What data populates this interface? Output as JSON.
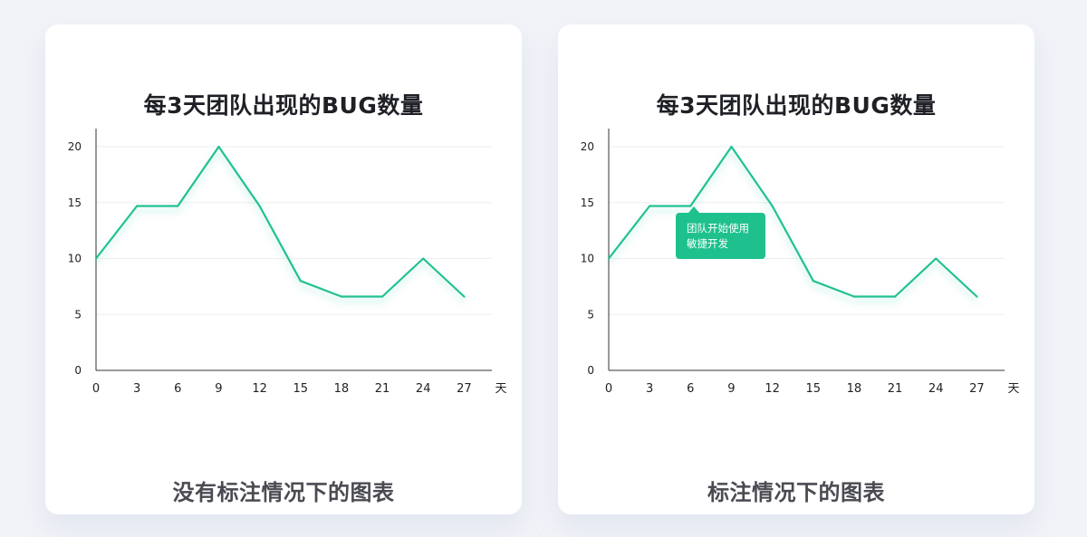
{
  "panels": [
    {
      "title": "每3天团队出现的BUG数量",
      "caption": "没有标注情况下的图表"
    },
    {
      "title": "每3天团队出现的BUG数量",
      "caption": "标注情况下的图表",
      "annotation": {
        "line1": "团队开始使用",
        "line2": "敏捷开发"
      }
    }
  ],
  "colors": {
    "line": "#22c192",
    "annotation_bg": "#1ec18d",
    "axis": "#333333",
    "grid": "#eeeeee"
  },
  "chart_data": [
    {
      "type": "line",
      "title": "每3天团队出现的BUG数量",
      "x": [
        0,
        3,
        6,
        9,
        12,
        15,
        18,
        21,
        24,
        27
      ],
      "y": [
        10,
        14.7,
        14.7,
        20,
        14.7,
        8,
        6.6,
        6.6,
        10,
        6.6
      ],
      "xticks": [
        "0",
        "3",
        "6",
        "9",
        "12",
        "15",
        "18",
        "21",
        "24",
        "27"
      ],
      "yticks": [
        "0",
        "5",
        "10",
        "15",
        "20"
      ],
      "xunit": "天",
      "xlim": [
        0,
        29
      ],
      "ylim": [
        0,
        20
      ],
      "grid": true
    },
    {
      "type": "line",
      "title": "每3天团队出现的BUG数量",
      "x": [
        0,
        3,
        6,
        9,
        12,
        15,
        18,
        21,
        24,
        27
      ],
      "y": [
        10,
        14.7,
        14.7,
        20,
        14.7,
        8,
        6.6,
        6.6,
        10,
        6.6
      ],
      "xticks": [
        "0",
        "3",
        "6",
        "9",
        "12",
        "15",
        "18",
        "21",
        "24",
        "27"
      ],
      "yticks": [
        "0",
        "5",
        "10",
        "15",
        "20"
      ],
      "xunit": "天",
      "xlim": [
        0,
        29
      ],
      "ylim": [
        0,
        20
      ],
      "grid": true,
      "annotation": {
        "at_x": 6,
        "text": "团队开始使用敏捷开发"
      }
    }
  ]
}
